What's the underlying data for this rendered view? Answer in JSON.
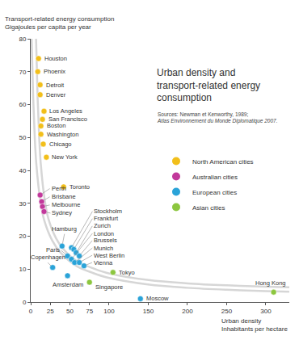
{
  "chart_data": {
    "type": "scatter",
    "title": [
      "Urban density and",
      "transport-related energy",
      "consumption"
    ],
    "source": [
      "Sources: Newman et Kenworthy, 1989;",
      "Atlas Environnement du Monde Diplomatique 2007."
    ],
    "y_label": [
      "Transport-related energy consumption",
      "Gigajoules per capita per year"
    ],
    "x_label": [
      "Urban density",
      "Inhabitants per hectare"
    ],
    "xlim": [
      0,
      330
    ],
    "xticks": [
      0,
      25,
      50,
      75,
      100,
      150,
      200,
      250,
      300
    ],
    "ylim": [
      0,
      80
    ],
    "yticks": [
      0,
      10,
      20,
      30,
      40,
      50,
      60,
      70,
      80
    ],
    "grid": false,
    "legend": "right",
    "curve": {
      "x": [
        4,
        6,
        8,
        10,
        15,
        20,
        30,
        40,
        60,
        80,
        100,
        150,
        200,
        250,
        300,
        330
      ],
      "y": [
        80,
        62,
        50,
        42,
        31,
        25,
        19,
        15.5,
        11.5,
        9.5,
        8,
        6,
        5,
        4.4,
        4,
        3.8
      ]
    },
    "series": [
      {
        "name": "North American cities",
        "color": "#f2bf1a",
        "labels": [
          "Houston",
          "Phoenix",
          "Detroit",
          "Denver",
          "Los Angeles",
          "San Francisco",
          "Boston",
          "Washington",
          "Chicago",
          "New York",
          "Toronto"
        ],
        "x": [
          10,
          9,
          12,
          12,
          17,
          15,
          13,
          13,
          16,
          20,
          42
        ],
        "y": [
          74,
          70,
          66,
          63,
          58,
          55.5,
          53.5,
          51,
          48,
          44,
          35
        ]
      },
      {
        "name": "Australian cities",
        "color": "#c2399b",
        "labels": [
          "Perth",
          "Brisbane",
          "Melbourne",
          "Sydney"
        ],
        "x": [
          12,
          14,
          15,
          17
        ],
        "y": [
          32.5,
          30.5,
          29,
          27.5
        ]
      },
      {
        "name": "European cities",
        "color": "#2aa3d8",
        "labels": [
          "Hamburg",
          "Stockholm",
          "Frankfurt",
          "Zurich",
          "Paris",
          "Brussels",
          "London",
          "Munich",
          "West Berlin",
          "Vienna",
          "Copenhagen",
          "Amsterdam",
          "Moscow"
        ],
        "x": [
          40,
          52,
          55,
          58,
          47,
          62,
          52,
          56,
          62,
          68,
          28,
          47,
          140
        ],
        "y": [
          17,
          16.5,
          16,
          15,
          14,
          14,
          13,
          12,
          12,
          11,
          10.5,
          8,
          1
        ]
      },
      {
        "name": "Asian cities",
        "color": "#8cc63f",
        "labels": [
          "Singapore",
          "Tokyo",
          "Hong Kong"
        ],
        "x": [
          75,
          105,
          310
        ],
        "y": [
          6,
          9,
          3
        ]
      }
    ]
  }
}
